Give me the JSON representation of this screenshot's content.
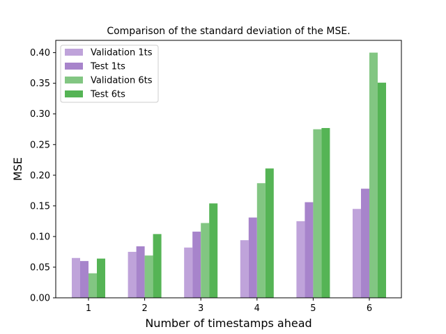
{
  "chart_data": {
    "type": "bar",
    "title": "Comparison of the standard deviation of the MSE.",
    "xlabel": "Number of timestamps ahead",
    "ylabel": "MSE",
    "categories": [
      "1",
      "2",
      "3",
      "4",
      "5",
      "6"
    ],
    "ylim": [
      0,
      0.42
    ],
    "yticks": [
      "0.00",
      "0.05",
      "0.10",
      "0.15",
      "0.20",
      "0.25",
      "0.30",
      "0.35",
      "0.40"
    ],
    "grid": false,
    "legend_position": "top-left",
    "series": [
      {
        "name": "Validation 1ts",
        "color": "#bfa3da",
        "values": [
          0.065,
          0.075,
          0.082,
          0.094,
          0.125,
          0.145
        ]
      },
      {
        "name": "Test 1ts",
        "color": "#a784cb",
        "values": [
          0.06,
          0.084,
          0.108,
          0.131,
          0.156,
          0.178
        ]
      },
      {
        "name": "Validation 6ts",
        "color": "#82c682",
        "values": [
          0.04,
          0.069,
          0.122,
          0.187,
          0.275,
          0.4
        ]
      },
      {
        "name": "Test 6ts",
        "color": "#55b455",
        "values": [
          0.064,
          0.104,
          0.154,
          0.211,
          0.277,
          0.351
        ]
      }
    ]
  }
}
